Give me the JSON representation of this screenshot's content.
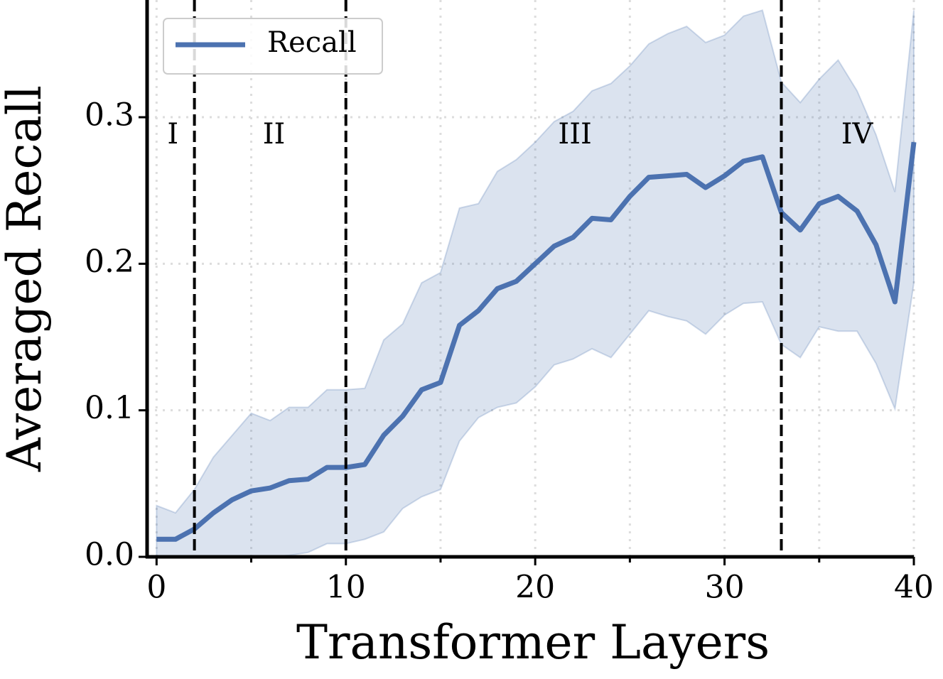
{
  "chart_data": {
    "type": "line",
    "xlabel": "Transformer Layers",
    "ylabel": "Averaged Recall",
    "x": [
      0,
      1,
      2,
      3,
      4,
      5,
      6,
      7,
      8,
      9,
      10,
      11,
      12,
      13,
      14,
      15,
      16,
      17,
      18,
      19,
      20,
      21,
      22,
      23,
      24,
      25,
      26,
      27,
      28,
      29,
      30,
      31,
      32,
      33,
      34,
      35,
      36,
      37,
      38,
      39,
      40
    ],
    "series": [
      {
        "name": "Recall",
        "color": "#4c72b0",
        "values": [
          0.012,
          0.012,
          0.019,
          0.03,
          0.039,
          0.045,
          0.047,
          0.052,
          0.053,
          0.061,
          0.061,
          0.063,
          0.083,
          0.096,
          0.114,
          0.119,
          0.158,
          0.168,
          0.183,
          0.188,
          0.2,
          0.212,
          0.218,
          0.231,
          0.23,
          0.246,
          0.259,
          0.26,
          0.261,
          0.252,
          0.26,
          0.27,
          0.273,
          0.235,
          0.223,
          0.241,
          0.246,
          0.236,
          0.213,
          0.174,
          0.283
        ],
        "band_upper": [
          0.035,
          0.03,
          0.046,
          0.068,
          0.083,
          0.098,
          0.093,
          0.102,
          0.102,
          0.114,
          0.114,
          0.115,
          0.148,
          0.159,
          0.187,
          0.194,
          0.238,
          0.241,
          0.263,
          0.271,
          0.283,
          0.297,
          0.304,
          0.318,
          0.323,
          0.335,
          0.35,
          0.357,
          0.362,
          0.351,
          0.356,
          0.369,
          0.373,
          0.324,
          0.31,
          0.326,
          0.339,
          0.318,
          0.288,
          0.249,
          0.373
        ],
        "band_lower": [
          0,
          0,
          0,
          0,
          0,
          0,
          0,
          0.001,
          0.003,
          0.009,
          0.009,
          0.012,
          0.017,
          0.033,
          0.041,
          0.046,
          0.079,
          0.095,
          0.102,
          0.105,
          0.116,
          0.131,
          0.135,
          0.142,
          0.136,
          0.152,
          0.168,
          0.164,
          0.161,
          0.152,
          0.165,
          0.173,
          0.174,
          0.145,
          0.136,
          0.157,
          0.154,
          0.154,
          0.132,
          0.101,
          0.187
        ]
      }
    ],
    "xlim": [
      -0.5,
      40
    ],
    "ylim": [
      0,
      0.38
    ],
    "xticks": [
      0,
      10,
      20,
      30,
      40
    ],
    "xticks_minor": [
      5,
      15,
      25,
      35
    ],
    "yticks": [
      {
        "value": 0,
        "label": "0.0"
      },
      0.1,
      0.2,
      0.3
    ],
    "grid": true,
    "legend": "upper left",
    "vlines": [
      2,
      10,
      33
    ],
    "annotations": [
      {
        "text": "I",
        "x": 0.86,
        "y": 0.287
      },
      {
        "text": "II",
        "x": 6.2,
        "y": 0.287
      },
      {
        "text": "III",
        "x": 22.1,
        "y": 0.287
      },
      {
        "text": "IV",
        "x": 37.0,
        "y": 0.287
      }
    ]
  }
}
